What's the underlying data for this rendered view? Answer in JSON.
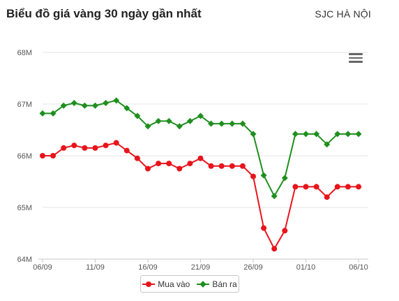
{
  "header": {
    "title": "Biểu đồ giá vàng 30 ngày gần nhất",
    "subtitle": "SJC HÀ NỘI"
  },
  "menu": {
    "icon": "hamburger-menu-icon"
  },
  "colors": {
    "buy": "#e8141c",
    "sell": "#1f8f1f",
    "grid": "#e6e6e6",
    "axis_text": "#555555"
  },
  "chart_data": {
    "type": "line",
    "x": [
      "06/09",
      "07/09",
      "08/09",
      "09/09",
      "10/09",
      "11/09",
      "12/09",
      "13/09",
      "14/09",
      "15/09",
      "16/09",
      "17/09",
      "18/09",
      "19/09",
      "20/09",
      "21/09",
      "22/09",
      "23/09",
      "24/09",
      "25/09",
      "26/09",
      "27/09",
      "28/09",
      "29/09",
      "30/09",
      "01/10",
      "02/10",
      "03/10",
      "04/10",
      "05/10",
      "06/10"
    ],
    "x_ticks": [
      "06/09",
      "11/09",
      "16/09",
      "21/09",
      "26/09",
      "01/10",
      "06/10"
    ],
    "y_ticks": [
      "64M",
      "65M",
      "66M",
      "67M",
      "68M"
    ],
    "ylim": [
      64,
      68
    ],
    "grid": true,
    "legend_position": "bottom-center",
    "series": [
      {
        "name": "Mua vào",
        "marker": "circle",
        "values": [
          66.0,
          66.0,
          66.15,
          66.2,
          66.15,
          66.15,
          66.2,
          66.25,
          66.1,
          65.95,
          65.75,
          65.85,
          65.85,
          65.75,
          65.85,
          65.95,
          65.8,
          65.8,
          65.8,
          65.8,
          65.6,
          64.6,
          64.2,
          64.55,
          65.4,
          65.4,
          65.4,
          65.2,
          65.4,
          65.4,
          65.4
        ]
      },
      {
        "name": "Bán ra",
        "marker": "diamond",
        "values": [
          66.82,
          66.82,
          66.97,
          67.02,
          66.97,
          66.97,
          67.02,
          67.07,
          66.92,
          66.77,
          66.57,
          66.67,
          66.67,
          66.57,
          66.67,
          66.77,
          66.62,
          66.62,
          66.62,
          66.62,
          66.42,
          65.62,
          65.22,
          65.57,
          66.42,
          66.42,
          66.42,
          66.22,
          66.42,
          66.42,
          66.42
        ]
      }
    ]
  }
}
